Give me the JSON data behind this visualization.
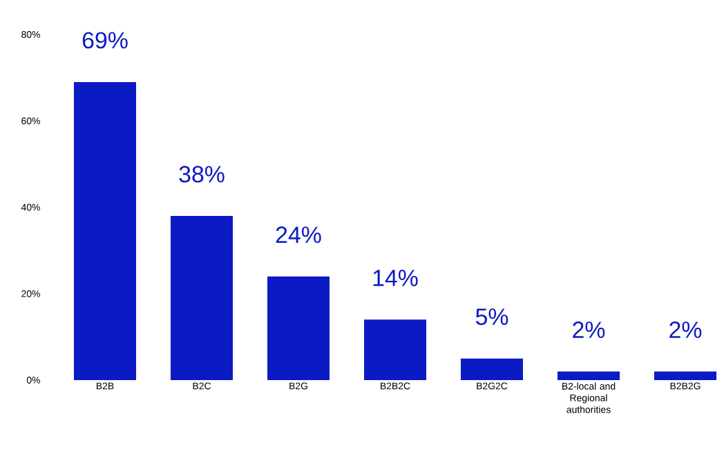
{
  "chart_data": {
    "type": "bar",
    "categories": [
      "B2B",
      "B2C",
      "B2G",
      "B2B2C",
      "B2G2C",
      "B2-local and Regional authorities",
      "B2B2G"
    ],
    "values": [
      69,
      38,
      24,
      14,
      5,
      2,
      2
    ],
    "value_labels": [
      "69%",
      "38%",
      "24%",
      "14%",
      "5%",
      "2%",
      "2%"
    ],
    "color": "#0c1ac4",
    "ylim": [
      0,
      80
    ],
    "yticks": [
      {
        "value": 0,
        "label": "0%"
      },
      {
        "value": 20,
        "label": "20%"
      },
      {
        "value": 40,
        "label": "40%"
      },
      {
        "value": 60,
        "label": "60%"
      },
      {
        "value": 80,
        "label": "80%"
      }
    ],
    "grid": false
  }
}
